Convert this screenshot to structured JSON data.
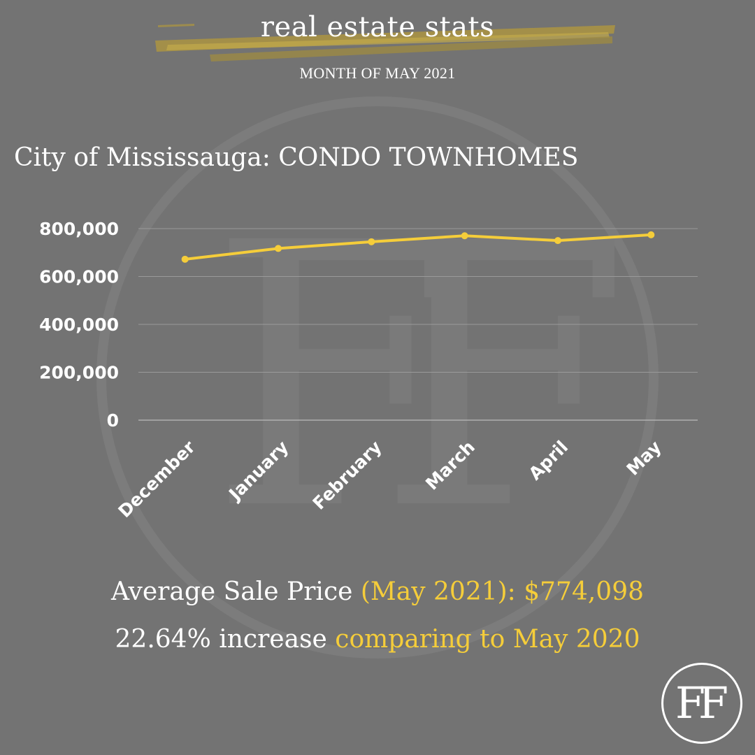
{
  "header": {
    "title": "real estate stats",
    "subtitle": "MONTH OF MAY 2021"
  },
  "heading": "City of Mississauga: CONDO TOWNHOMES",
  "summary": {
    "line1_white": "Average Sale Price ",
    "line1_accent": "(May 2021): $774,098",
    "line2_white": "22.64% increase ",
    "line2_accent": "comparing to May 2020"
  },
  "logo": {
    "text": "FF"
  },
  "colors": {
    "background": "#737373",
    "accent": "#f5cd3a",
    "text": "#ffffff",
    "grid": "#9a9a9a"
  },
  "chart_data": {
    "type": "line",
    "categories": [
      "December",
      "January",
      "February",
      "March",
      "April",
      "May"
    ],
    "series": [
      {
        "name": "",
        "values": [
          672000,
          717000,
          745000,
          770000,
          750000,
          774098
        ]
      }
    ],
    "yticks": [
      "0",
      "200,000",
      "400,000",
      "600,000",
      "800,000"
    ],
    "ylim": [
      0,
      800000
    ],
    "grid": true,
    "legend": "none",
    "title": "",
    "xlabel": "",
    "ylabel": ""
  }
}
